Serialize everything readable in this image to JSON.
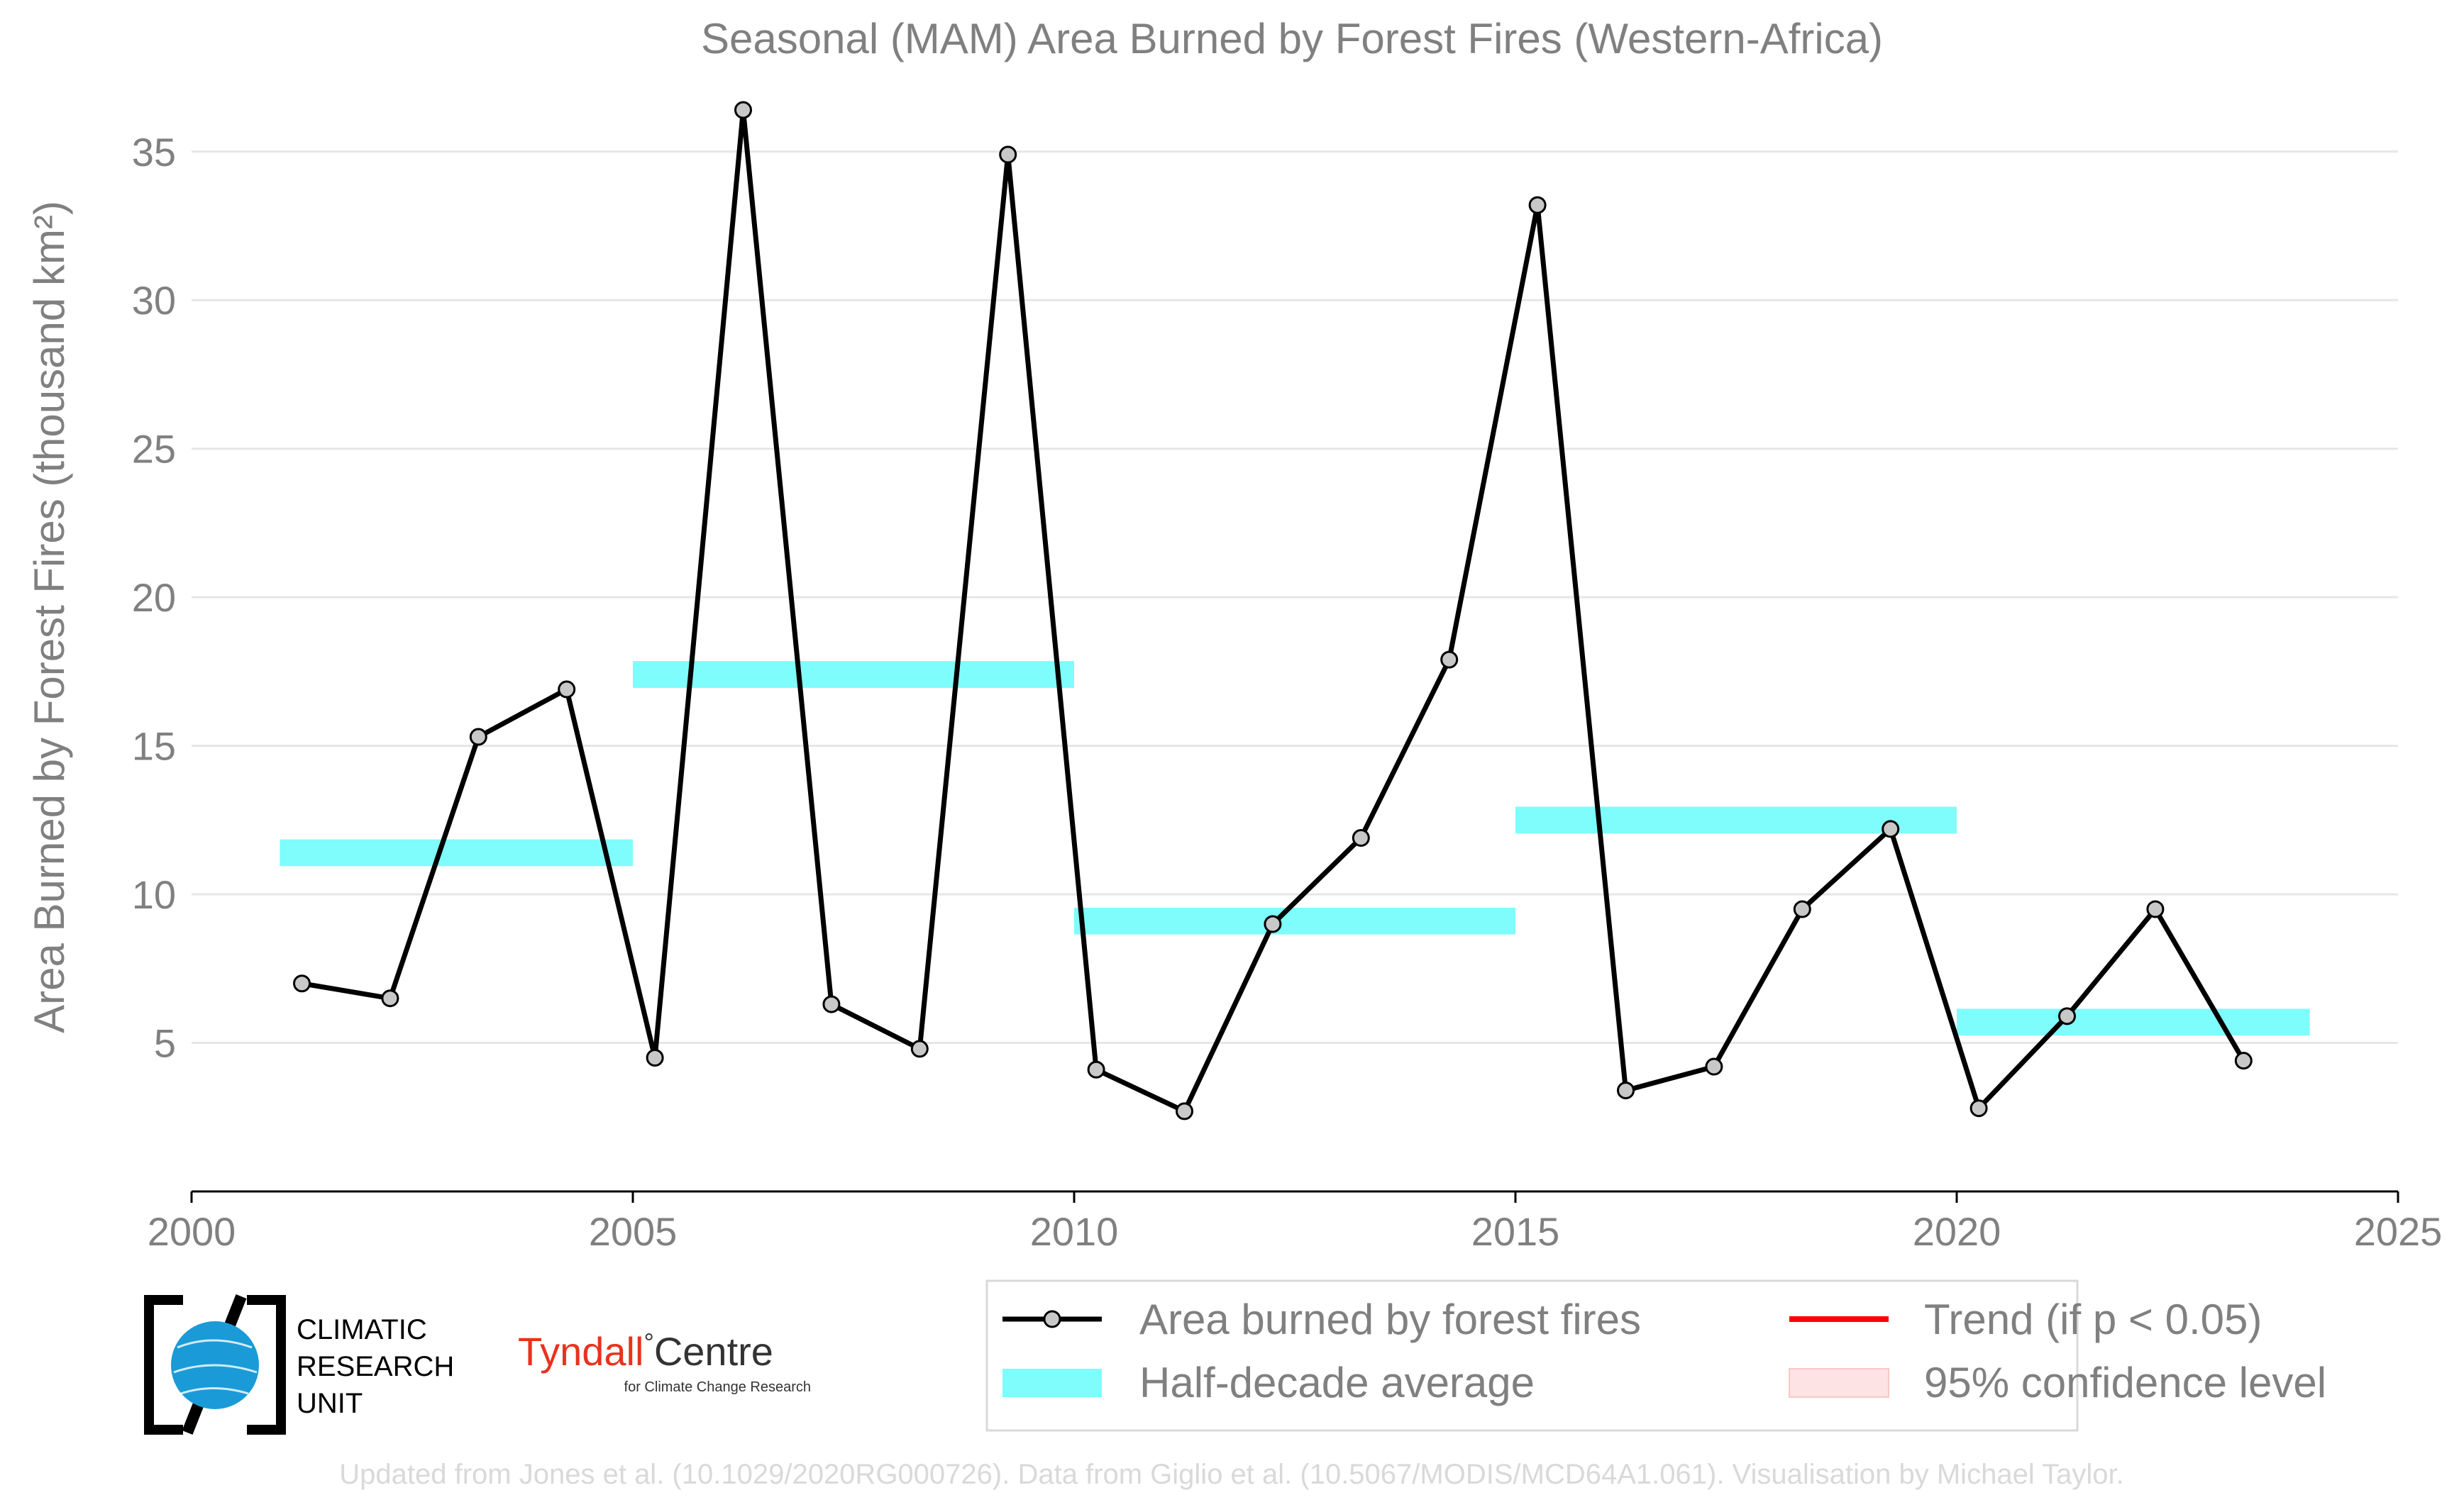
{
  "colors": {
    "series": "#000000",
    "marker_fill": "#c8c8c8",
    "half_decade": "#7ffcfc",
    "trend": "#ff0000",
    "confidence": "#fde3e3",
    "text": "#808080",
    "grid": "#e6e6e6",
    "footer": "#d9d9d9",
    "tyndall_red": "#e8321e",
    "cru_globe": "#1a9bd7"
  },
  "legend": {
    "series": "Area burned by forest fires",
    "half_decade": "Half-decade average",
    "trend": "Trend (if p < 0.05)",
    "confidence": "95% confidence level"
  },
  "logos": {
    "cru": {
      "line1": "CLIMATIC",
      "line2": "RESEARCH",
      "line3": "UNIT"
    },
    "tyndall": {
      "name_a": "Tyndall",
      "degree": "°",
      "name_b": "Centre",
      "sub": "for Climate Change Research"
    }
  },
  "footer": "Updated from Jones et al. (10.1029/2020RG000726). Data from Giglio et al. (10.5067/MODIS/MCD64A1.061). Visualisation by Michael Taylor.",
  "chart_data": {
    "type": "line",
    "title": "Seasonal (MAM) Area Burned by Forest Fires (Western-Africa)",
    "xlabel": "",
    "ylabel": "Area Burned by Forest Fires (thousand km²)",
    "xlim": [
      2000,
      2025
    ],
    "ylim": [
      0,
      37
    ],
    "xticks": [
      2000,
      2005,
      2010,
      2015,
      2020,
      2025
    ],
    "yticks": [
      5,
      10,
      15,
      20,
      25,
      30,
      35
    ],
    "grid": "horizontal",
    "legend_position": "bottom-right",
    "series": [
      {
        "name": "Area burned by forest fires",
        "x": [
          2001.25,
          2002.25,
          2003.25,
          2004.25,
          2005.25,
          2006.25,
          2007.25,
          2008.25,
          2009.25,
          2010.25,
          2011.25,
          2012.25,
          2013.25,
          2014.25,
          2015.25,
          2016.25,
          2017.25,
          2018.25,
          2019.25,
          2020.25,
          2021.25,
          2022.25,
          2023.25
        ],
        "y": [
          7.0,
          6.5,
          15.3,
          16.9,
          4.5,
          36.4,
          6.3,
          4.8,
          34.9,
          4.1,
          2.7,
          9.0,
          11.9,
          17.9,
          33.2,
          3.4,
          4.2,
          9.5,
          12.2,
          2.8,
          5.9,
          9.5,
          4.4
        ]
      }
    ],
    "half_decade_averages": [
      {
        "start": 2001,
        "end": 2005,
        "value": 11.4
      },
      {
        "start": 2005,
        "end": 2010,
        "value": 17.4
      },
      {
        "start": 2010,
        "end": 2015,
        "value": 9.1
      },
      {
        "start": 2015,
        "end": 2020,
        "value": 12.5
      },
      {
        "start": 2020,
        "end": 2024,
        "value": 5.7
      }
    ]
  }
}
